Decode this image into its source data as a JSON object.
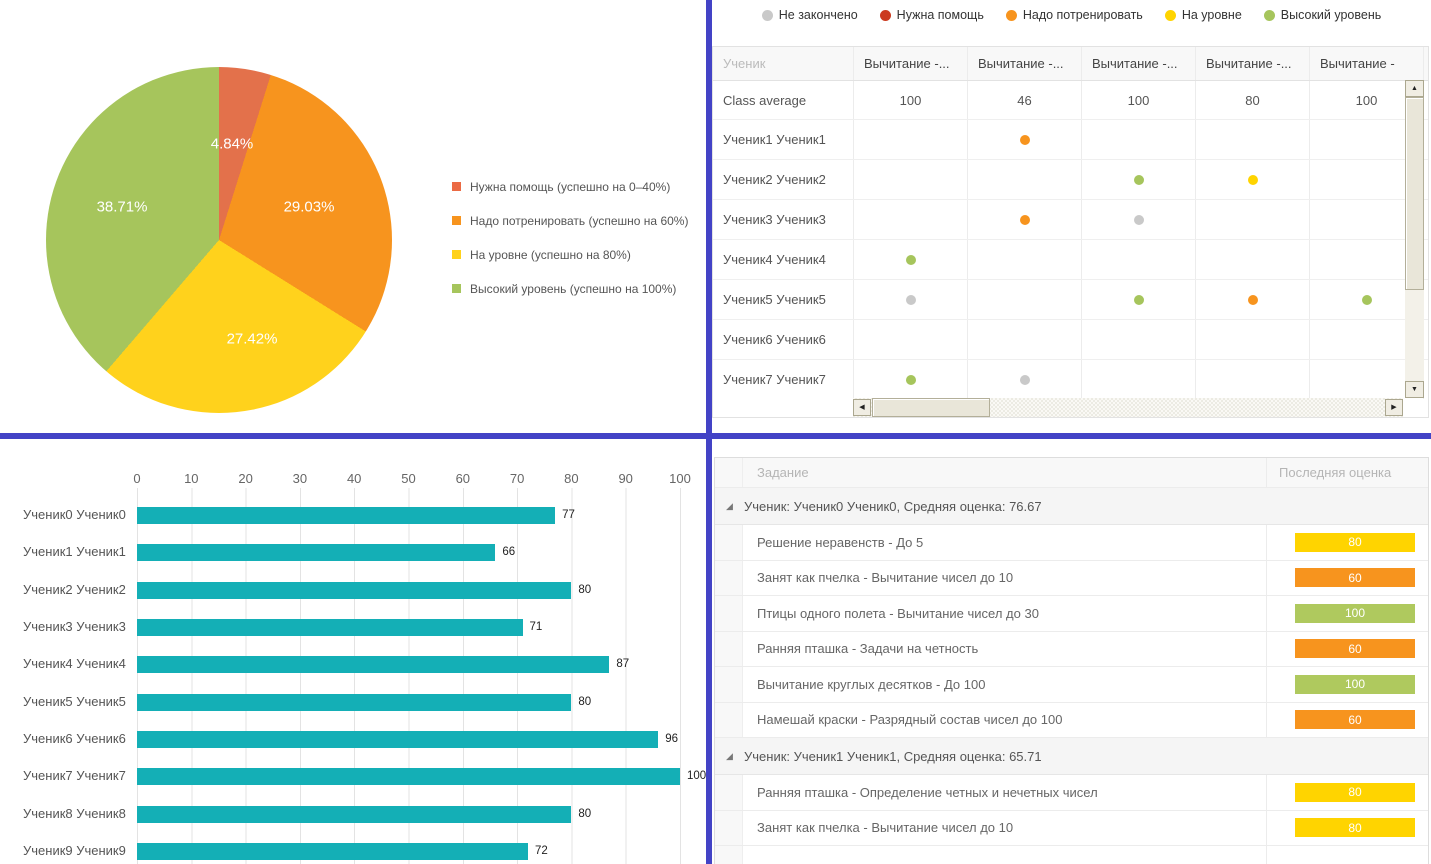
{
  "colors": {
    "divider": "#4343C6",
    "bar": "#14AFB6",
    "status": {
      "gray": "#C9C9C9",
      "red": "#CB3A1F",
      "orange": "#F7941E",
      "yellow": "#FFD400",
      "green": "#A6C55C"
    }
  },
  "pie": {
    "slices": [
      {
        "label": "Нужна помощь (успешно на 0–40%)",
        "pct": 4.84,
        "pct_label": "4.84%",
        "color": "#E3714B",
        "legend_color": "#EB6A44"
      },
      {
        "label": "Надо потренировать (успешно на 60%)",
        "pct": 29.03,
        "pct_label": "29.03%",
        "color": "#F7941E",
        "legend_color": "#F7941E"
      },
      {
        "label": "На уровне (успешно на 80%)",
        "pct": 27.42,
        "pct_label": "27.42%",
        "color": "#FFD21C",
        "legend_color": "#FFD21C"
      },
      {
        "label": "Высокий уровень (успешно на 100%)",
        "pct": 38.71,
        "pct_label": "38.71%",
        "color": "#A6C55C",
        "legend_color": "#A6C55C"
      }
    ]
  },
  "status_legend": [
    {
      "label": "Не закончено",
      "color_key": "gray"
    },
    {
      "label": "Нужна помощь",
      "color_key": "red"
    },
    {
      "label": "Надо потренировать",
      "color_key": "orange"
    },
    {
      "label": "На уровне",
      "color_key": "yellow"
    },
    {
      "label": "Высокий уровень",
      "color_key": "green"
    }
  ],
  "grid": {
    "student_col_header": "Ученик",
    "col_headers": [
      "Вычитание -...",
      "Вычитание -...",
      "Вычитание -...",
      "Вычитание -...",
      "Вычитание -"
    ],
    "class_average_label": "Class average",
    "class_average_values": [
      "100",
      "46",
      "100",
      "80",
      "100"
    ],
    "rows": [
      {
        "name": "Ученик1 Ученик1",
        "dots": [
          "",
          "orange",
          "",
          "",
          ""
        ]
      },
      {
        "name": "Ученик2 Ученик2",
        "dots": [
          "",
          "",
          "green",
          "yellow",
          ""
        ]
      },
      {
        "name": "Ученик3 Ученик3",
        "dots": [
          "",
          "orange",
          "gray",
          "",
          ""
        ]
      },
      {
        "name": "Ученик4 Ученик4",
        "dots": [
          "green",
          "",
          "",
          "",
          ""
        ]
      },
      {
        "name": "Ученик5 Ученик5",
        "dots": [
          "gray",
          "",
          "green",
          "orange",
          "green"
        ]
      },
      {
        "name": "Ученик6 Ученик6",
        "dots": [
          "",
          "",
          "",
          "",
          ""
        ]
      },
      {
        "name": "Ученик7 Ученик7",
        "dots": [
          "green",
          "gray",
          "",
          "",
          ""
        ]
      }
    ]
  },
  "barchart": {
    "ticks": [
      "0",
      "10",
      "20",
      "30",
      "40",
      "50",
      "60",
      "70",
      "80",
      "90",
      "100"
    ],
    "bars": [
      {
        "label": "Ученик0 Ученик0",
        "value": 77
      },
      {
        "label": "Ученик1 Ученик1",
        "value": 66
      },
      {
        "label": "Ученик2 Ученик2",
        "value": 80
      },
      {
        "label": "Ученик3 Ученик3",
        "value": 71
      },
      {
        "label": "Ученик4 Ученик4",
        "value": 87
      },
      {
        "label": "Ученик5 Ученик5",
        "value": 80
      },
      {
        "label": "Ученик6 Ученик6",
        "value": 96
      },
      {
        "label": "Ученик7 Ученик7",
        "value": 100
      },
      {
        "label": "Ученик8 Ученик8",
        "value": 80
      },
      {
        "label": "Ученик9 Ученик9",
        "value": 72
      }
    ]
  },
  "tasks": {
    "header": {
      "task": "Задание",
      "score": "Последняя оценка"
    },
    "groups": [
      {
        "title": "Ученик: Ученик0 Ученик0, Средняя оценка: 76.67",
        "rows": [
          {
            "task": "Решение неравенств - До 5",
            "score": "80",
            "level": "yellow"
          },
          {
            "task": "Занят как пчелка - Вычитание чисел до 10",
            "score": "60",
            "level": "orange"
          },
          {
            "task": "Птицы одного полета - Вычитание чисел до 30",
            "score": "100",
            "level": "green"
          },
          {
            "task": "Ранняя пташка - Задачи на четность",
            "score": "60",
            "level": "orange"
          },
          {
            "task": "Вычитание круглых десятков - До 100",
            "score": "100",
            "level": "green"
          },
          {
            "task": "Намешай краски - Разрядный состав чисел до 100",
            "score": "60",
            "level": "orange"
          }
        ]
      },
      {
        "title": "Ученик: Ученик1 Ученик1, Средняя оценка: 65.71",
        "rows": [
          {
            "task": "Ранняя пташка - Определение четных и нечетных чисел",
            "score": "80",
            "level": "yellow"
          },
          {
            "task": "Занят как пчелка - Вычитание чисел до 10",
            "score": "80",
            "level": "yellow"
          }
        ]
      }
    ]
  },
  "chart_data": [
    {
      "type": "pie",
      "title": "",
      "labels": [
        "Нужна помощь (успешно на 0–40%)",
        "Надо потренировать (успешно на 60%)",
        "На уровне (успешно на 80%)",
        "Высокий уровень (успешно на 100%)"
      ],
      "values": [
        4.84,
        29.03,
        27.42,
        38.71
      ],
      "colors": [
        "#E3714B",
        "#F7941E",
        "#FFD21C",
        "#A6C55C"
      ],
      "legend_position": "right",
      "data_labels": [
        "4.84%",
        "29.03%",
        "27.42%",
        "38.71%"
      ]
    },
    {
      "type": "bar",
      "orientation": "horizontal",
      "categories": [
        "Ученик0 Ученик0",
        "Ученик1 Ученик1",
        "Ученик2 Ученик2",
        "Ученик3 Ученик3",
        "Ученик4 Ученик4",
        "Ученик5 Ученик5",
        "Ученик6 Ученик6",
        "Ученик7 Ученик7",
        "Ученик8 Ученик8",
        "Ученик9 Ученик9"
      ],
      "values": [
        77,
        66,
        80,
        71,
        87,
        80,
        96,
        100,
        80,
        72
      ],
      "title": "",
      "xlabel": "",
      "ylabel": "",
      "xlim": [
        0,
        100
      ],
      "grid": true,
      "bar_color": "#14AFB6"
    },
    {
      "type": "table",
      "title": "Status grid",
      "columns": [
        "Ученик",
        "Вычитание -...",
        "Вычитание -...",
        "Вычитание -...",
        "Вычитание -...",
        "Вычитание -"
      ],
      "rows": [
        [
          "Class average",
          "100",
          "46",
          "100",
          "80",
          "100"
        ],
        [
          "Ученик1 Ученик1",
          "",
          "orange",
          "",
          "",
          ""
        ],
        [
          "Ученик2 Ученик2",
          "",
          "",
          "green",
          "yellow",
          ""
        ],
        [
          "Ученик3 Ученик3",
          "",
          "orange",
          "gray",
          "",
          ""
        ],
        [
          "Ученик4 Ученик4",
          "green",
          "",
          "",
          "",
          ""
        ],
        [
          "Ученик5 Ученик5",
          "gray",
          "",
          "green",
          "orange",
          "green"
        ],
        [
          "Ученик6 Ученик6",
          "",
          "",
          "",
          "",
          ""
        ],
        [
          "Ученик7 Ученик7",
          "green",
          "gray",
          "",
          "",
          ""
        ]
      ]
    }
  ]
}
